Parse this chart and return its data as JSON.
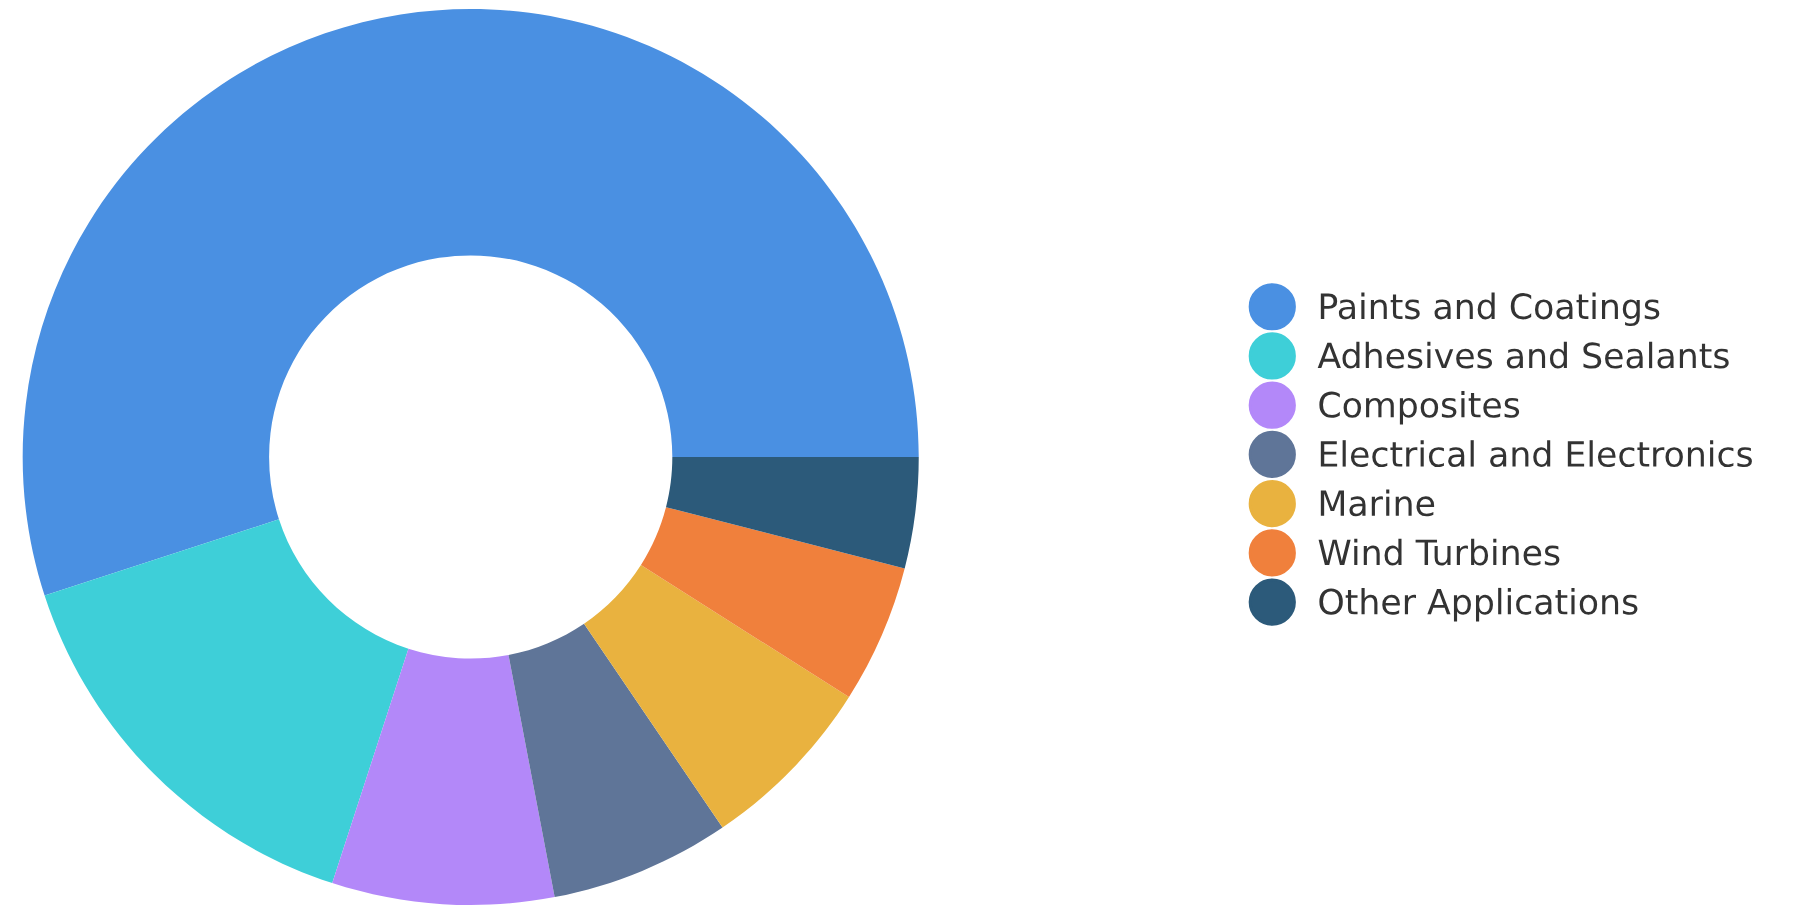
{
  "chart_data": {
    "type": "donut",
    "categories": [
      "Paints and Coatings",
      "Adhesives and Sealants",
      "Composites",
      "Electrical and Electronics",
      "Marine",
      "Wind Turbines",
      "Other Applications"
    ],
    "values": [
      55,
      15,
      8,
      6.5,
      6.5,
      5,
      4
    ],
    "colors": [
      "#4a90e2",
      "#3ecfd8",
      "#b388f9",
      "#5f7598",
      "#e9b23f",
      "#f0803c",
      "#2c5a7a"
    ],
    "legend": "right"
  }
}
